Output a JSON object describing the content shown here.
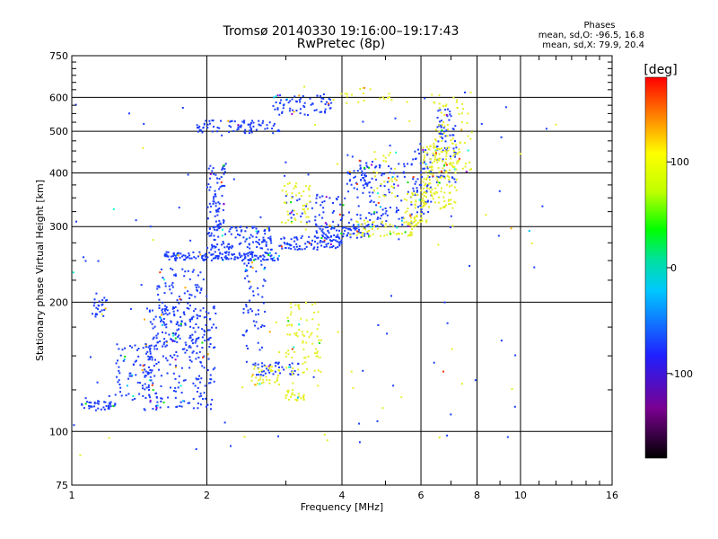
{
  "header": {
    "title_line1": "Tromsø 20140330 19:16:00–19:17:43",
    "title_line2": "RwPretec (8p)"
  },
  "stats": {
    "title": "Phases",
    "line1": "mean, sd,O: -96.5, 16.8",
    "line2": "mean, sd,X:  79.9, 20.4"
  },
  "chart_data": {
    "type": "scatter",
    "title": "Tromsø 20140330 19:16:00–19:17:43",
    "subtitle": "RwPretec (8p)",
    "xlabel": "Frequency [MHz]",
    "ylabel": "Stationary phase Virtual Height [km]",
    "x_scale": "log",
    "y_scale": "log",
    "xlim": [
      1,
      16
    ],
    "ylim": [
      75,
      750
    ],
    "x_ticks": [
      1,
      2,
      4,
      6,
      8,
      10,
      16
    ],
    "x_tick_labels": [
      "1",
      "2",
      "4",
      "6",
      "8",
      "10",
      "16"
    ],
    "y_ticks": [
      75,
      100,
      200,
      300,
      400,
      500,
      600,
      750
    ],
    "y_tick_labels": [
      "75",
      "100",
      "200",
      "300",
      "400",
      "500",
      "600",
      "750"
    ],
    "grid": true,
    "colorbar": {
      "label": "[deg]",
      "range": [
        -180,
        180
      ],
      "ticks": [
        100,
        0,
        -100
      ],
      "tick_labels": [
        "100",
        "0",
        "-100"
      ]
    },
    "series": [
      {
        "mode": "O",
        "color": "#1a3cff",
        "mean_phase_deg": -96.5,
        "clusters": [
          {
            "x": [
              1.05,
              1.25
            ],
            "y": [
              112,
              118
            ],
            "n": 40
          },
          {
            "x": [
              1.1,
              1.2
            ],
            "y": [
              185,
              210
            ],
            "n": 25
          },
          {
            "x": [
              1.25,
              1.55
            ],
            "y": [
              118,
              160
            ],
            "n": 80
          },
          {
            "x": [
              1.45,
              2.1
            ],
            "y": [
              112,
              200
            ],
            "n": 260
          },
          {
            "x": [
              1.55,
              2.0
            ],
            "y": [
              160,
              240
            ],
            "n": 120
          },
          {
            "x": [
              1.6,
              2.9
            ],
            "y": [
              250,
              262
            ],
            "n": 170
          },
          {
            "x": [
              2.0,
              2.8
            ],
            "y": [
              265,
              300
            ],
            "n": 120
          },
          {
            "x": [
              2.0,
              2.2
            ],
            "y": [
              300,
              420
            ],
            "n": 70
          },
          {
            "x": [
              1.9,
              2.9
            ],
            "y": [
              495,
              530
            ],
            "n": 80
          },
          {
            "x": [
              2.8,
              3.8
            ],
            "y": [
              545,
              610
            ],
            "n": 70
          },
          {
            "x": [
              2.9,
              4.0
            ],
            "y": [
              265,
              285
            ],
            "n": 90
          },
          {
            "x": [
              2.5,
              3.2
            ],
            "y": [
              135,
              145
            ],
            "n": 40
          },
          {
            "x": [
              2.4,
              2.7
            ],
            "y": [
              140,
              250
            ],
            "n": 60
          },
          {
            "x": [
              3.5,
              4.6
            ],
            "y": [
              282,
              305
            ],
            "n": 80
          },
          {
            "x": [
              4.3,
              5.8
            ],
            "y": [
              300,
              420
            ],
            "n": 110
          },
          {
            "x": [
              5.7,
              6.4
            ],
            "y": [
              320,
              460
            ],
            "n": 60
          },
          {
            "x": [
              6.5,
              7.2
            ],
            "y": [
              380,
              580
            ],
            "n": 70
          },
          {
            "x": [
              3.0,
              4.2
            ],
            "y": [
              305,
              355
            ],
            "n": 50
          },
          {
            "x": [
              4.1,
              4.7
            ],
            "y": [
              360,
              440
            ],
            "n": 40
          },
          {
            "x": [
              1.0,
              11.5
            ],
            "y": [
              90,
              640
            ],
            "n": 90
          }
        ]
      },
      {
        "mode": "X",
        "color": "#e6ef28",
        "mean_phase_deg": 79.9,
        "clusters": [
          {
            "x": [
              2.5,
              2.9
            ],
            "y": [
              128,
              142
            ],
            "n": 40
          },
          {
            "x": [
              3.0,
              3.3
            ],
            "y": [
              118,
              125
            ],
            "n": 25
          },
          {
            "x": [
              3.0,
              3.6
            ],
            "y": [
              135,
              200
            ],
            "n": 80
          },
          {
            "x": [
              2.9,
              3.4
            ],
            "y": [
              300,
              380
            ],
            "n": 50
          },
          {
            "x": [
              4.3,
              5.8
            ],
            "y": [
              285,
              310
            ],
            "n": 60
          },
          {
            "x": [
              5.5,
              6.2
            ],
            "y": [
              300,
              360
            ],
            "n": 60
          },
          {
            "x": [
              6.0,
              7.3
            ],
            "y": [
              330,
              470
            ],
            "n": 160
          },
          {
            "x": [
              6.3,
              7.8
            ],
            "y": [
              400,
              620
            ],
            "n": 80
          },
          {
            "x": [
              4.7,
              5.3
            ],
            "y": [
              350,
              450
            ],
            "n": 30
          },
          {
            "x": [
              3.8,
              5.2
            ],
            "y": [
              580,
              640
            ],
            "n": 20
          },
          {
            "x": [
              1.0,
              12.0
            ],
            "y": [
              85,
              650
            ],
            "n": 40
          }
        ]
      }
    ]
  }
}
